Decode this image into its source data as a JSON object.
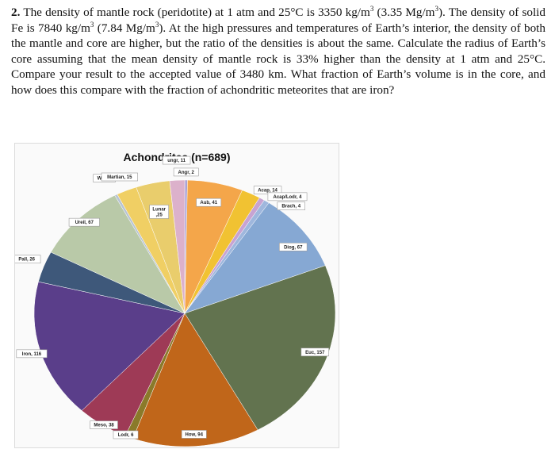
{
  "problem": {
    "number": "2.",
    "lines": [
      "The density of mantle rock (peridotite) at 1 atm and 25°C is 3350 kg/m",
      " (3.35 Mg/m",
      ").  The density of solid Fe is 7840 kg/m",
      " (7.84 Mg/m",
      ").  At the high pressures and temperatures of Earth’s interior, the density of both the mantle and core are higher, but the ratio of the densities is about the same.  Calculate the radius of Earth’s core assuming that the mean density of mantle rock is 33% higher than the density at 1 atm and 25°C. Compare your result to the accepted value of 3480 km.  What fraction of Earth’s volume is in the core, and how does this compare with the fraction of achondritic meteorites that are iron?"
    ],
    "exponent": "3"
  },
  "chart_data": {
    "type": "pie",
    "title": "Achondrites (n=689)",
    "slices": [
      {
        "label": "Angr, 2",
        "value": 2,
        "color": "#a9a2d6"
      },
      {
        "label": "Aub, 41",
        "value": 41,
        "color": "#f4a64a"
      },
      {
        "label": "Acap, 14",
        "value": 14,
        "color": "#f1c232"
      },
      {
        "label": "Acap/Lodr, 4",
        "value": 4,
        "color": "#c7a3d2"
      },
      {
        "label": "Brach, 4",
        "value": 4,
        "color": "#9fb7dd"
      },
      {
        "label": "Diog, 67",
        "value": 67,
        "color": "#86a8d3"
      },
      {
        "label": "Euc, 157",
        "value": 157,
        "color": "#62734f"
      },
      {
        "label": "How, 94",
        "value": 94,
        "color": "#c0661a"
      },
      {
        "label": "Lodr, 6",
        "value": 6,
        "color": "#8a7a2a"
      },
      {
        "label": "Meso, 38",
        "value": 38,
        "color": "#9e3a56"
      },
      {
        "label": "Iron, 116",
        "value": 116,
        "color": "#5a3e8a"
      },
      {
        "label": "Pall, 26",
        "value": 26,
        "color": "#3e587a"
      },
      {
        "label": "Ureil, 67",
        "value": 67,
        "color": "#b9c9a8"
      },
      {
        "label": "Win, 2",
        "value": 2,
        "color": "#b8c4d4"
      },
      {
        "label": "Martian, 15",
        "value": 15,
        "color": "#f0cf64"
      },
      {
        "label": "Lunar, 25",
        "value": 25,
        "color": "#e9cd6c"
      },
      {
        "label": "ungr, 11",
        "value": 11,
        "color": "#dcb1cb"
      }
    ],
    "legend": "none"
  }
}
